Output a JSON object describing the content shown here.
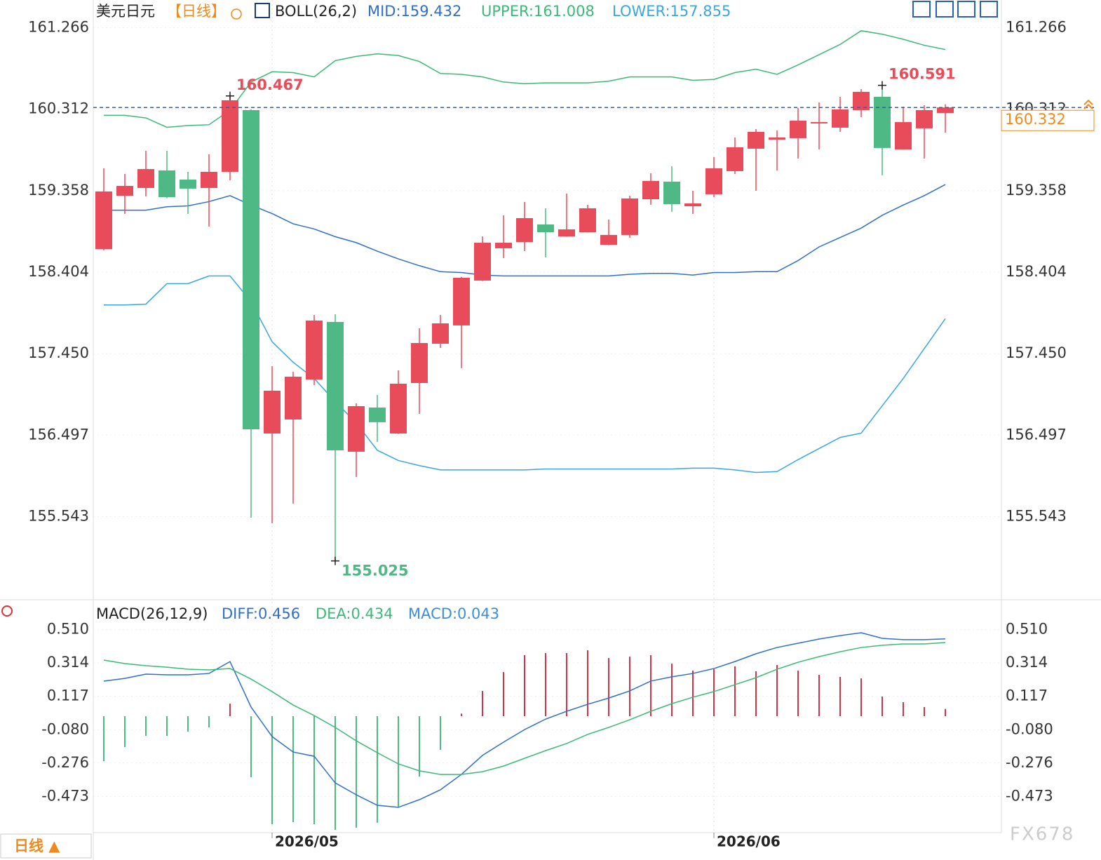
{
  "chart_data": [
    {
      "type": "candlestick",
      "title": "美元日元",
      "period": "【日线】",
      "indicator": "BOLL(26,2)",
      "up_color": "#e84c5a",
      "down_color": "#4fb985",
      "open": [
        158.675,
        159.299,
        159.39,
        159.595,
        159.488,
        159.39,
        159.579,
        160.301,
        156.516,
        156.68,
        157.148,
        157.822,
        156.303,
        156.82,
        156.516,
        157.107,
        157.567,
        157.781,
        158.306,
        158.684,
        158.757,
        158.963,
        158.823,
        158.872,
        158.725,
        158.84,
        159.258,
        159.464,
        159.176,
        159.316,
        159.587,
        159.85,
        159.956,
        159.973,
        160.145,
        160.096,
        160.301,
        160.457,
        159.841,
        160.088,
        160.268
      ],
      "high": [
        159.62,
        159.554,
        159.825,
        159.825,
        159.579,
        159.784,
        160.467,
        160.31,
        157.304,
        157.239,
        157.904,
        157.912,
        156.869,
        156.968,
        157.255,
        157.748,
        157.904,
        158.35,
        158.823,
        159.07,
        159.226,
        159.152,
        159.324,
        159.193,
        159.02,
        159.299,
        159.562,
        159.644,
        159.357,
        159.751,
        159.981,
        160.079,
        160.063,
        160.326,
        160.391,
        160.457,
        160.547,
        160.591,
        160.342,
        160.358,
        160.37
      ],
      "low": [
        158.66,
        159.086,
        159.291,
        159.27,
        159.086,
        158.938,
        159.48,
        155.531,
        155.465,
        155.695,
        157.083,
        155.025,
        156.007,
        156.418,
        156.51,
        156.746,
        157.518,
        157.28,
        158.3,
        158.569,
        158.651,
        158.577,
        158.82,
        158.87,
        158.72,
        158.807,
        159.193,
        159.111,
        159.086,
        159.283,
        159.554,
        159.357,
        159.595,
        159.734,
        159.841,
        160.047,
        160.219,
        159.538,
        159.84,
        159.734,
        160.038
      ],
      "close": [
        159.349,
        159.414,
        159.611,
        159.283,
        159.382,
        159.579,
        160.416,
        156.565,
        157.017,
        157.181,
        157.838,
        156.319,
        156.836,
        156.648,
        157.099,
        157.575,
        157.805,
        158.339,
        158.749,
        158.749,
        159.037,
        158.872,
        158.905,
        159.152,
        158.84,
        159.267,
        159.472,
        159.201,
        159.209,
        159.62,
        159.866,
        160.047,
        159.981,
        160.178,
        160.161,
        160.309,
        160.515,
        159.858,
        160.161,
        160.301,
        160.332
      ],
      "series": [
        {
          "name": "MID:159.432",
          "color": "#2f6fc8",
          "values": [
            159.13,
            159.13,
            159.13,
            159.17,
            159.18,
            159.23,
            159.3,
            159.19,
            159.09,
            158.97,
            158.91,
            158.82,
            158.75,
            158.65,
            158.56,
            158.48,
            158.41,
            158.4,
            158.37,
            158.36,
            158.36,
            158.36,
            158.36,
            158.36,
            158.36,
            158.38,
            158.39,
            158.39,
            158.37,
            158.4,
            158.4,
            158.41,
            158.41,
            158.54,
            158.7,
            158.81,
            158.92,
            159.07,
            159.19,
            159.3,
            159.43
          ]
        },
        {
          "name": "UPPER:161.008",
          "color": "#3cb878",
          "values": [
            160.24,
            160.24,
            160.21,
            160.1,
            160.12,
            160.13,
            160.3,
            160.63,
            160.75,
            160.74,
            160.69,
            160.88,
            160.93,
            160.96,
            160.94,
            160.87,
            160.73,
            160.72,
            160.69,
            160.63,
            160.61,
            160.62,
            160.62,
            160.62,
            160.64,
            160.69,
            160.69,
            160.69,
            160.65,
            160.66,
            160.74,
            160.78,
            160.72,
            160.83,
            160.95,
            161.07,
            161.23,
            161.19,
            161.13,
            161.06,
            161.01
          ]
        },
        {
          "name": "LOWER:157.855",
          "color": "#3aa6dc",
          "values": [
            158.02,
            158.02,
            158.03,
            158.27,
            158.27,
            158.36,
            158.36,
            158.06,
            157.59,
            157.35,
            157.16,
            156.89,
            156.64,
            156.32,
            156.2,
            156.14,
            156.09,
            156.09,
            156.09,
            156.09,
            156.09,
            156.1,
            156.1,
            156.1,
            156.1,
            156.1,
            156.1,
            156.1,
            156.11,
            156.11,
            156.09,
            156.06,
            156.07,
            156.21,
            156.34,
            156.47,
            156.52,
            156.84,
            157.16,
            157.51,
            157.86
          ]
        }
      ],
      "ylim": [
        154.57,
        161.59
      ],
      "yticks": [
        161.266,
        160.312,
        159.358,
        158.404,
        {
          "value": 157.45,
          "label": "157.450"
        },
        156.497,
        155.543
      ],
      "last_price": 160.332,
      "annotations": [
        "160.467",
        "160.591",
        "155.025"
      ],
      "grid": true
    },
    {
      "type": "macd",
      "title": "MACD(26,12,9)",
      "categories": [
        null,
        null,
        null,
        null,
        null,
        null,
        null,
        null,
        "2026/05",
        null,
        null,
        null,
        null,
        null,
        null,
        null,
        null,
        null,
        null,
        null,
        null,
        null,
        null,
        null,
        null,
        null,
        null,
        null,
        null,
        "2026/06",
        null,
        null,
        null,
        null,
        null,
        null,
        null,
        null,
        null,
        null,
        null
      ],
      "series": [
        {
          "name": "DIFF:0.456",
          "color": "#2f6fc8",
          "values": [
            0.207,
            0.223,
            0.248,
            0.244,
            0.244,
            0.252,
            0.322,
            0.054,
            -0.12,
            -0.211,
            -0.236,
            -0.393,
            -0.463,
            -0.525,
            -0.537,
            -0.492,
            -0.434,
            -0.343,
            -0.231,
            -0.153,
            -0.079,
            -0.017,
            0.029,
            0.07,
            0.107,
            0.149,
            0.207,
            0.232,
            0.252,
            0.281,
            0.322,
            0.368,
            0.405,
            0.43,
            0.455,
            0.475,
            0.492,
            0.459,
            0.451,
            0.451,
            0.456
          ]
        },
        {
          "name": "DEA:0.434",
          "color": "#3cb878",
          "values": [
            0.331,
            0.31,
            0.298,
            0.289,
            0.277,
            0.273,
            0.281,
            0.219,
            0.145,
            0.066,
            0.004,
            -0.066,
            -0.145,
            -0.215,
            -0.281,
            -0.322,
            -0.343,
            -0.343,
            -0.327,
            -0.294,
            -0.248,
            -0.203,
            -0.161,
            -0.107,
            -0.066,
            -0.021,
            0.029,
            0.074,
            0.112,
            0.145,
            0.186,
            0.227,
            0.277,
            0.318,
            0.351,
            0.38,
            0.405,
            0.418,
            0.426,
            0.426,
            0.434
          ]
        }
      ],
      "histogram": {
        "name": "MACD:0.043",
        "name_color": "#3a8fd8",
        "up_color": "#c8384a",
        "down_color": "#4fb985",
        "values": [
          -0.265,
          -0.182,
          -0.116,
          -0.116,
          -0.091,
          -0.066,
          0.074,
          -0.36,
          -0.637,
          -0.624,
          -0.637,
          -0.67,
          -0.657,
          -0.628,
          -0.533,
          -0.356,
          -0.198,
          0.015,
          0.149,
          0.26,
          0.36,
          0.372,
          0.372,
          0.389,
          0.343,
          0.351,
          0.36,
          0.31,
          0.269,
          0.277,
          0.294,
          0.265,
          0.302,
          0.269,
          0.244,
          0.232,
          0.223,
          0.116,
          0.083,
          0.054,
          0.043
        ]
      },
      "ylim": [
        -0.678,
        0.674
      ],
      "yticks": [
        {
          "value": 0.51,
          "label": "0.510"
        },
        0.314,
        0.117,
        {
          "value": -0.08,
          "label": "-0.080"
        },
        -0.276,
        -0.473
      ]
    }
  ],
  "timeframe_button": "日线 ▲",
  "watermark": "FX678"
}
